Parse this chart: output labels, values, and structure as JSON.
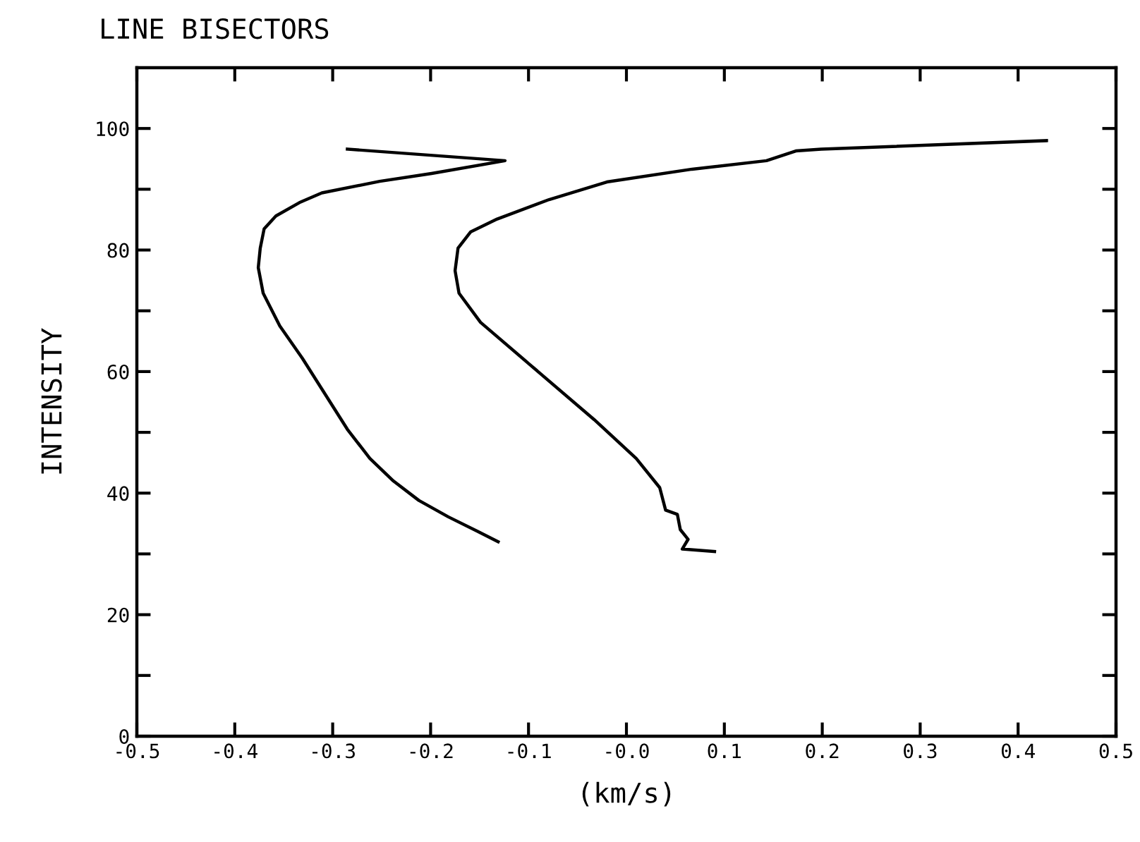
{
  "chart_data": {
    "type": "line",
    "title": "LINE BISECTORS",
    "xlabel": "(km/s)",
    "ylabel": "INTENSITY",
    "xlim": [
      -0.5,
      0.5
    ],
    "ylim": [
      0,
      110
    ],
    "xticks": [
      {
        "value": -0.5,
        "label": "-0.5"
      },
      {
        "value": -0.4,
        "label": "-0.4"
      },
      {
        "value": -0.3,
        "label": "-0.3"
      },
      {
        "value": -0.2,
        "label": "-0.2"
      },
      {
        "value": -0.1,
        "label": "-0.1"
      },
      {
        "value": 0,
        "label": "-0.0"
      },
      {
        "value": 0.1,
        "label": "0.1"
      },
      {
        "value": 0.2,
        "label": "0.2"
      },
      {
        "value": 0.3,
        "label": "0.3"
      },
      {
        "value": 0.4,
        "label": "0.4"
      },
      {
        "value": 0.5,
        "label": "0.5"
      }
    ],
    "yticks": [
      0,
      {
        "value": 10,
        "label": null
      },
      20,
      {
        "value": 30,
        "label": null
      },
      40,
      {
        "value": 50,
        "label": null
      },
      60,
      {
        "value": 70,
        "label": null
      },
      80,
      {
        "value": 90,
        "label": null
      },
      100
    ],
    "grid": false,
    "legend": false,
    "marker": "none",
    "line_style": "solid",
    "series": [
      {
        "color": "#000000",
        "x": [
          -0.285,
          -0.124,
          -0.199,
          -0.252,
          -0.311,
          -0.334,
          -0.358,
          -0.37,
          -0.374,
          -0.376,
          -0.371,
          -0.354,
          -0.331,
          -0.285,
          -0.262,
          -0.238,
          -0.212,
          -0.182,
          -0.152,
          -0.131
        ],
        "values": [
          96.6,
          94.7,
          92.6,
          91.3,
          89.4,
          87.8,
          85.6,
          83.5,
          80.3,
          77.1,
          72.9,
          67.5,
          62.2,
          50.5,
          45.7,
          42.0,
          38.8,
          36.1,
          33.7,
          32.0
        ]
      },
      {
        "color": "#000000",
        "x": [
          0.429,
          0.199,
          0.173,
          0.143,
          0.067,
          -0.02,
          -0.079,
          -0.132,
          -0.159,
          -0.172,
          -0.175,
          -0.171,
          -0.149,
          -0.099,
          -0.033,
          0.01,
          0.034,
          0.04,
          0.052,
          0.055,
          0.063,
          0.057,
          0.09
        ],
        "values": [
          98.0,
          96.6,
          96.3,
          94.7,
          93.3,
          91.2,
          88.3,
          85.1,
          83.0,
          80.3,
          76.6,
          72.9,
          68.1,
          61.2,
          52.1,
          45.7,
          40.9,
          37.2,
          36.5,
          34.0,
          32.4,
          30.8,
          30.4
        ]
      }
    ]
  }
}
